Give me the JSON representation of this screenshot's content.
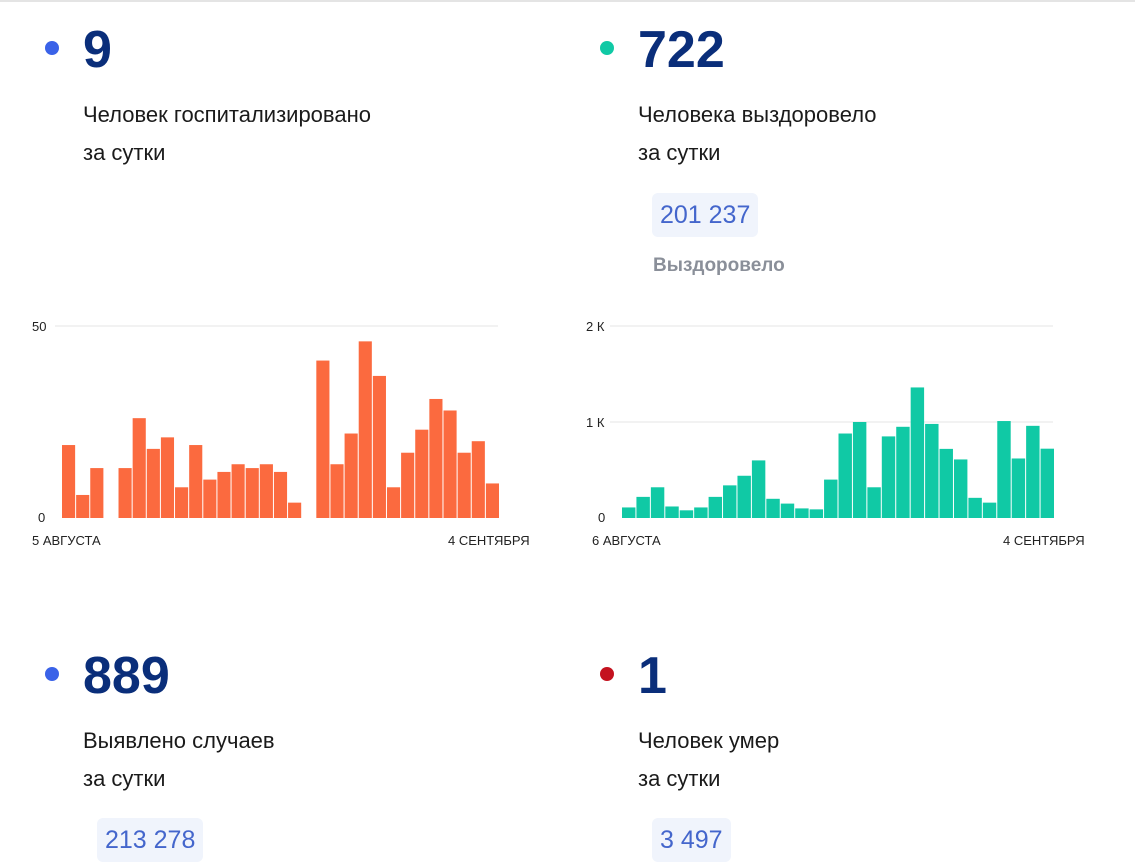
{
  "cards": [
    {
      "value": "9",
      "line1": "Человек госпитализировано",
      "line2": "за сутки",
      "dot_color": "#3a62e8"
    },
    {
      "value": "722",
      "line1": "Человека выздоровело",
      "line2": "за сутки",
      "dot_color": "#10c9a5",
      "total": "201 237",
      "total_label": "Выздоровело"
    },
    {
      "value": "889",
      "line1": "Выявлено случаев",
      "line2": "за сутки",
      "dot_color": "#3a62e8",
      "total": "213 278"
    },
    {
      "value": "1",
      "line1": "Человек умер",
      "line2": "за сутки",
      "dot_color": "#c4121f",
      "total": "3 497"
    }
  ],
  "chart_data": [
    {
      "type": "bar",
      "color": "#fb6a3f",
      "ylim": [
        0,
        50
      ],
      "y_ticks": [
        "50",
        "0"
      ],
      "x_start_label": "5 АВГУСТА",
      "x_end_label": "4 СЕНТЯБРЯ",
      "values": [
        19,
        6,
        13,
        0,
        13,
        26,
        18,
        21,
        8,
        19,
        10,
        12,
        14,
        13,
        14,
        12,
        4,
        0,
        41,
        14,
        22,
        46,
        37,
        8,
        17,
        23,
        31,
        28,
        17,
        20,
        9
      ]
    },
    {
      "type": "bar",
      "color": "#10c9a5",
      "ylim": [
        0,
        2000
      ],
      "y_ticks": [
        "2 К",
        "1 К",
        "0"
      ],
      "x_start_label": "6 АВГУСТА",
      "x_end_label": "4 СЕНТЯБРЯ",
      "values": [
        110,
        220,
        320,
        120,
        80,
        110,
        220,
        340,
        440,
        600,
        200,
        150,
        100,
        90,
        400,
        880,
        1000,
        320,
        850,
        950,
        1360,
        980,
        720,
        610,
        210,
        160,
        1010,
        620,
        960,
        722
      ]
    }
  ]
}
